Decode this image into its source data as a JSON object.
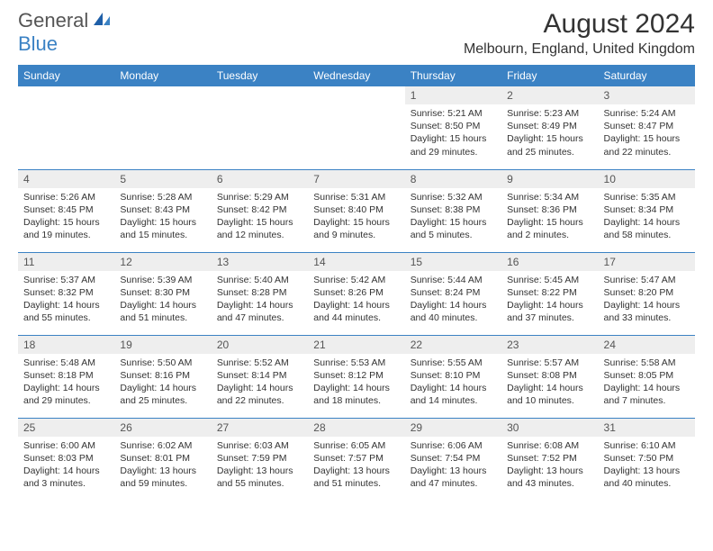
{
  "logo": {
    "text1": "General",
    "text2": "Blue"
  },
  "title": "August 2024",
  "location": "Melbourn, England, United Kingdom",
  "colors": {
    "header_bg": "#3b82c4",
    "header_text": "#ffffff",
    "daynum_bg": "#eeeeee",
    "border": "#3b82c4",
    "text": "#333333",
    "logo_gray": "#555555",
    "logo_blue": "#3b82c4"
  },
  "weekdays": [
    "Sunday",
    "Monday",
    "Tuesday",
    "Wednesday",
    "Thursday",
    "Friday",
    "Saturday"
  ],
  "weeks": [
    [
      null,
      null,
      null,
      null,
      {
        "n": "1",
        "sr": "Sunrise: 5:21 AM",
        "ss": "Sunset: 8:50 PM",
        "dl": "Daylight: 15 hours and 29 minutes."
      },
      {
        "n": "2",
        "sr": "Sunrise: 5:23 AM",
        "ss": "Sunset: 8:49 PM",
        "dl": "Daylight: 15 hours and 25 minutes."
      },
      {
        "n": "3",
        "sr": "Sunrise: 5:24 AM",
        "ss": "Sunset: 8:47 PM",
        "dl": "Daylight: 15 hours and 22 minutes."
      }
    ],
    [
      {
        "n": "4",
        "sr": "Sunrise: 5:26 AM",
        "ss": "Sunset: 8:45 PM",
        "dl": "Daylight: 15 hours and 19 minutes."
      },
      {
        "n": "5",
        "sr": "Sunrise: 5:28 AM",
        "ss": "Sunset: 8:43 PM",
        "dl": "Daylight: 15 hours and 15 minutes."
      },
      {
        "n": "6",
        "sr": "Sunrise: 5:29 AM",
        "ss": "Sunset: 8:42 PM",
        "dl": "Daylight: 15 hours and 12 minutes."
      },
      {
        "n": "7",
        "sr": "Sunrise: 5:31 AM",
        "ss": "Sunset: 8:40 PM",
        "dl": "Daylight: 15 hours and 9 minutes."
      },
      {
        "n": "8",
        "sr": "Sunrise: 5:32 AM",
        "ss": "Sunset: 8:38 PM",
        "dl": "Daylight: 15 hours and 5 minutes."
      },
      {
        "n": "9",
        "sr": "Sunrise: 5:34 AM",
        "ss": "Sunset: 8:36 PM",
        "dl": "Daylight: 15 hours and 2 minutes."
      },
      {
        "n": "10",
        "sr": "Sunrise: 5:35 AM",
        "ss": "Sunset: 8:34 PM",
        "dl": "Daylight: 14 hours and 58 minutes."
      }
    ],
    [
      {
        "n": "11",
        "sr": "Sunrise: 5:37 AM",
        "ss": "Sunset: 8:32 PM",
        "dl": "Daylight: 14 hours and 55 minutes."
      },
      {
        "n": "12",
        "sr": "Sunrise: 5:39 AM",
        "ss": "Sunset: 8:30 PM",
        "dl": "Daylight: 14 hours and 51 minutes."
      },
      {
        "n": "13",
        "sr": "Sunrise: 5:40 AM",
        "ss": "Sunset: 8:28 PM",
        "dl": "Daylight: 14 hours and 47 minutes."
      },
      {
        "n": "14",
        "sr": "Sunrise: 5:42 AM",
        "ss": "Sunset: 8:26 PM",
        "dl": "Daylight: 14 hours and 44 minutes."
      },
      {
        "n": "15",
        "sr": "Sunrise: 5:44 AM",
        "ss": "Sunset: 8:24 PM",
        "dl": "Daylight: 14 hours and 40 minutes."
      },
      {
        "n": "16",
        "sr": "Sunrise: 5:45 AM",
        "ss": "Sunset: 8:22 PM",
        "dl": "Daylight: 14 hours and 37 minutes."
      },
      {
        "n": "17",
        "sr": "Sunrise: 5:47 AM",
        "ss": "Sunset: 8:20 PM",
        "dl": "Daylight: 14 hours and 33 minutes."
      }
    ],
    [
      {
        "n": "18",
        "sr": "Sunrise: 5:48 AM",
        "ss": "Sunset: 8:18 PM",
        "dl": "Daylight: 14 hours and 29 minutes."
      },
      {
        "n": "19",
        "sr": "Sunrise: 5:50 AM",
        "ss": "Sunset: 8:16 PM",
        "dl": "Daylight: 14 hours and 25 minutes."
      },
      {
        "n": "20",
        "sr": "Sunrise: 5:52 AM",
        "ss": "Sunset: 8:14 PM",
        "dl": "Daylight: 14 hours and 22 minutes."
      },
      {
        "n": "21",
        "sr": "Sunrise: 5:53 AM",
        "ss": "Sunset: 8:12 PM",
        "dl": "Daylight: 14 hours and 18 minutes."
      },
      {
        "n": "22",
        "sr": "Sunrise: 5:55 AM",
        "ss": "Sunset: 8:10 PM",
        "dl": "Daylight: 14 hours and 14 minutes."
      },
      {
        "n": "23",
        "sr": "Sunrise: 5:57 AM",
        "ss": "Sunset: 8:08 PM",
        "dl": "Daylight: 14 hours and 10 minutes."
      },
      {
        "n": "24",
        "sr": "Sunrise: 5:58 AM",
        "ss": "Sunset: 8:05 PM",
        "dl": "Daylight: 14 hours and 7 minutes."
      }
    ],
    [
      {
        "n": "25",
        "sr": "Sunrise: 6:00 AM",
        "ss": "Sunset: 8:03 PM",
        "dl": "Daylight: 14 hours and 3 minutes."
      },
      {
        "n": "26",
        "sr": "Sunrise: 6:02 AM",
        "ss": "Sunset: 8:01 PM",
        "dl": "Daylight: 13 hours and 59 minutes."
      },
      {
        "n": "27",
        "sr": "Sunrise: 6:03 AM",
        "ss": "Sunset: 7:59 PM",
        "dl": "Daylight: 13 hours and 55 minutes."
      },
      {
        "n": "28",
        "sr": "Sunrise: 6:05 AM",
        "ss": "Sunset: 7:57 PM",
        "dl": "Daylight: 13 hours and 51 minutes."
      },
      {
        "n": "29",
        "sr": "Sunrise: 6:06 AM",
        "ss": "Sunset: 7:54 PM",
        "dl": "Daylight: 13 hours and 47 minutes."
      },
      {
        "n": "30",
        "sr": "Sunrise: 6:08 AM",
        "ss": "Sunset: 7:52 PM",
        "dl": "Daylight: 13 hours and 43 minutes."
      },
      {
        "n": "31",
        "sr": "Sunrise: 6:10 AM",
        "ss": "Sunset: 7:50 PM",
        "dl": "Daylight: 13 hours and 40 minutes."
      }
    ]
  ]
}
